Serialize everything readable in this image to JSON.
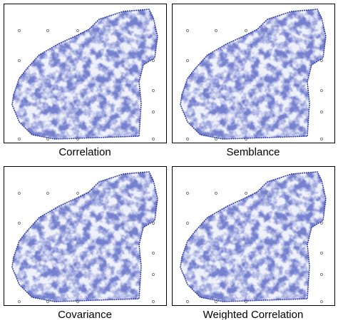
{
  "panels": [
    {
      "caption": "Correlation"
    },
    {
      "caption": "Semblance"
    },
    {
      "caption": "Covariance"
    },
    {
      "caption": "Weighted Correlation"
    }
  ]
}
